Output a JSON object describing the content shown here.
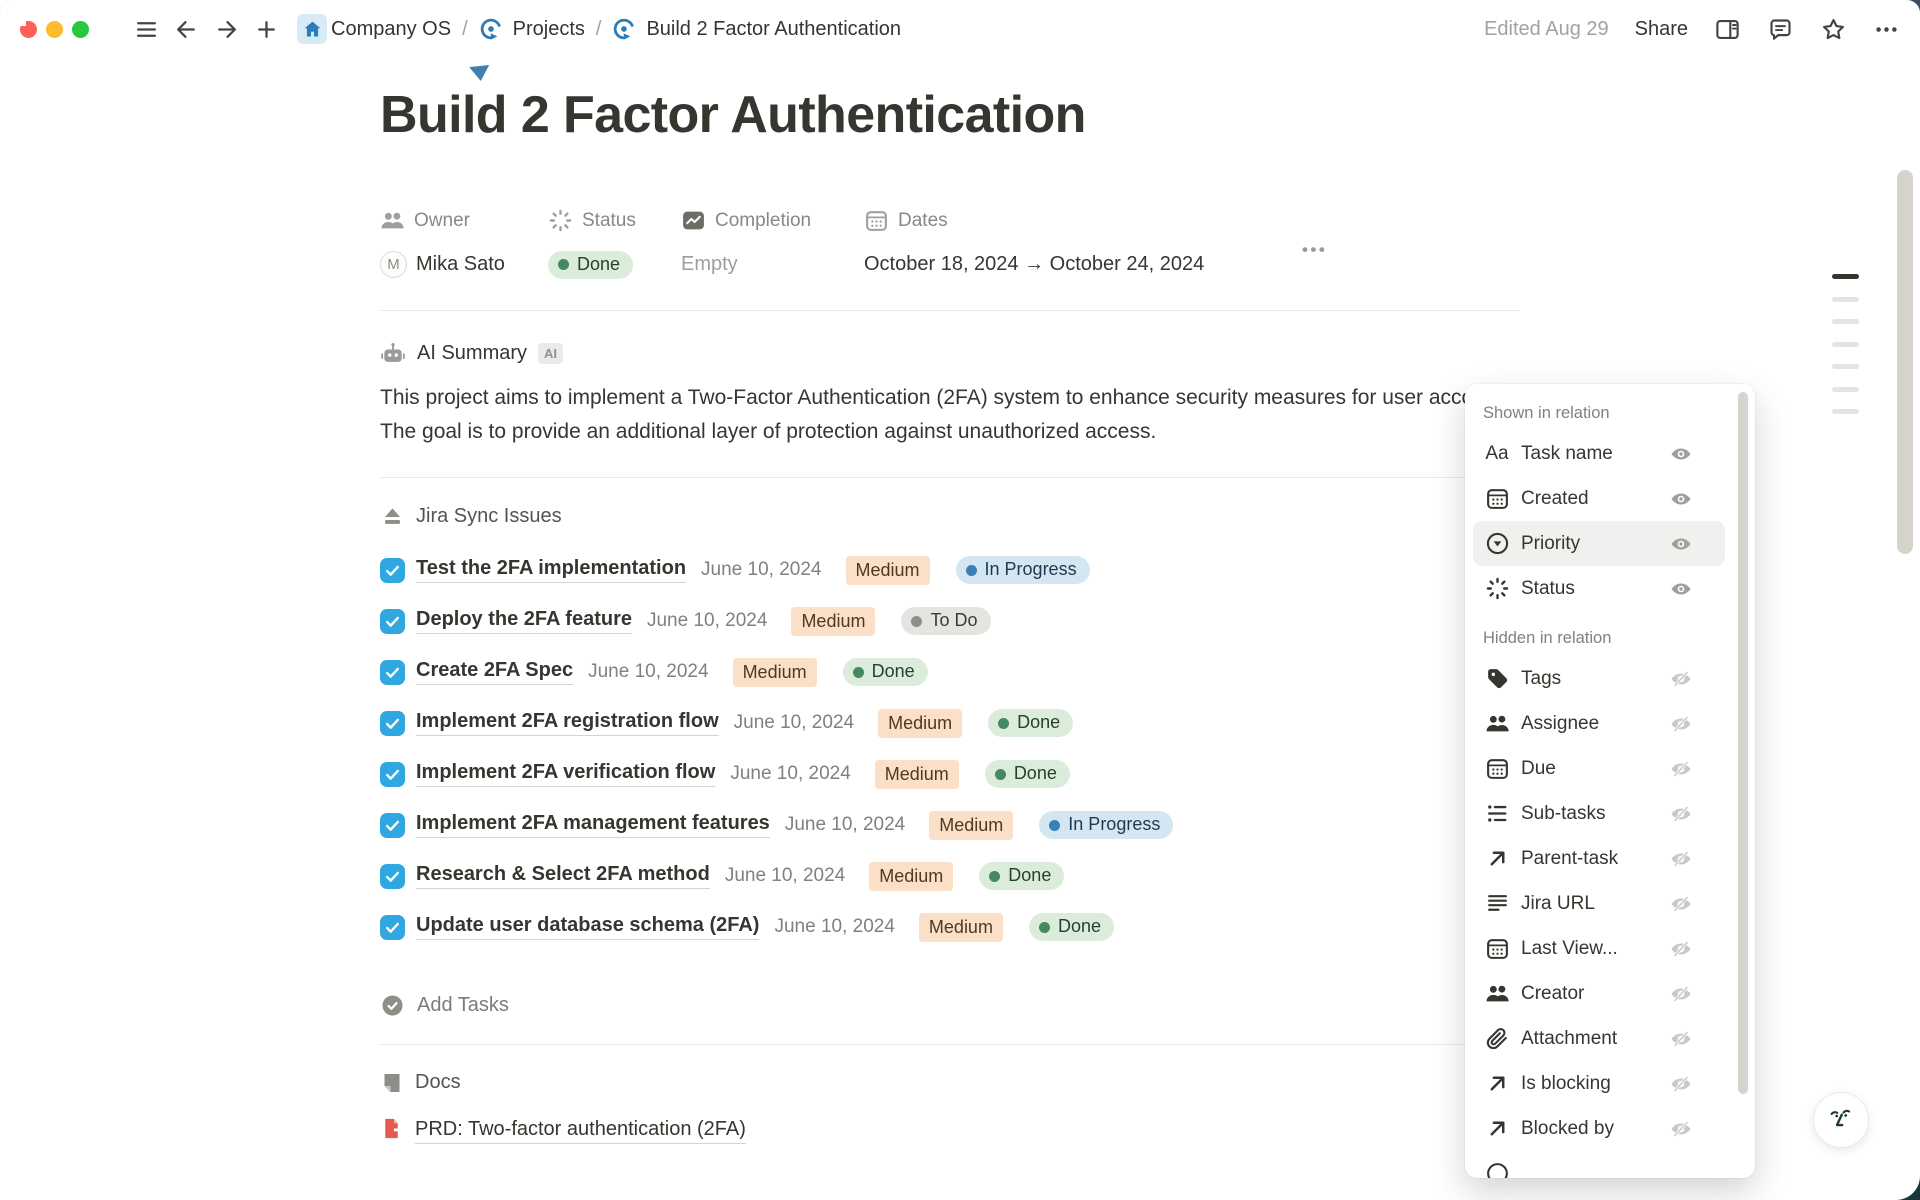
{
  "titlebar": {
    "breadcrumb": {
      "0": {
        "label": "Company OS"
      },
      "1": {
        "label": "Projects"
      },
      "2": {
        "label": "Build 2 Factor Authentication"
      }
    },
    "separator": "/",
    "edited": "Edited Aug 29",
    "share_label": "Share"
  },
  "page": {
    "title": "Build 2 Factor Authentication",
    "properties": {
      "owner": {
        "name": "Owner",
        "icon": "people-icon",
        "avatar_initial": "M",
        "value": "Mika Sato"
      },
      "status": {
        "name": "Status",
        "icon": "spinner-icon",
        "value": "Done"
      },
      "completion": {
        "name": "Completion",
        "icon": "chart-icon",
        "value": "Empty"
      },
      "dates": {
        "name": "Dates",
        "icon": "calendar-icon",
        "value": "October 18, 2024 → October 24, 2024"
      }
    }
  },
  "ai_summary": {
    "heading": "AI Summary",
    "badge": "AI",
    "text": "This project aims to implement a Two-Factor Authentication (2FA) system to enhance security measures for user accounts. The goal is to provide an additional layer of protection against unauthorized access."
  },
  "tasks_section": {
    "heading": "Jira Sync Issues",
    "add_label": "Add Tasks",
    "items": [
      {
        "title": "Test the 2FA implementation",
        "date": "June 10, 2024",
        "priority": "Medium",
        "status": "In Progress"
      },
      {
        "title": "Deploy the 2FA feature",
        "date": "June 10, 2024",
        "priority": "Medium",
        "status": "To Do"
      },
      {
        "title": "Create 2FA Spec",
        "date": "June 10, 2024",
        "priority": "Medium",
        "status": "Done"
      },
      {
        "title": "Implement 2FA registration flow",
        "date": "June 10, 2024",
        "priority": "Medium",
        "status": "Done"
      },
      {
        "title": "Implement 2FA verification flow",
        "date": "June 10, 2024",
        "priority": "Medium",
        "status": "Done"
      },
      {
        "title": "Implement 2FA management features",
        "date": "June 10, 2024",
        "priority": "Medium",
        "status": "In Progress"
      },
      {
        "title": "Research & Select 2FA method",
        "date": "June 10, 2024",
        "priority": "Medium",
        "status": "Done"
      },
      {
        "title": "Update user database schema (2FA)",
        "date": "June 10, 2024",
        "priority": "Medium",
        "status": "Done"
      }
    ]
  },
  "docs_section": {
    "heading": "Docs",
    "doc_title": "PRD: Two-factor authentication (2FA)"
  },
  "popover": {
    "shown_header": "Shown in relation",
    "hidden_header": "Hidden in relation",
    "shown": [
      {
        "label": "Task name",
        "icon": "text-icon"
      },
      {
        "label": "Created",
        "icon": "calendar-icon"
      },
      {
        "label": "Priority",
        "icon": "priority-icon",
        "highlighted": true
      },
      {
        "label": "Status",
        "icon": "spinner-icon"
      }
    ],
    "hidden": [
      {
        "label": "Tags",
        "icon": "tag-icon"
      },
      {
        "label": "Assignee",
        "icon": "people-icon"
      },
      {
        "label": "Due",
        "icon": "calendar-icon"
      },
      {
        "label": "Sub-tasks",
        "icon": "list-icon"
      },
      {
        "label": "Parent-task",
        "icon": "arrow-up-right-icon"
      },
      {
        "label": "Jira URL",
        "icon": "lines-icon"
      },
      {
        "label": "Last View...",
        "icon": "calendar-icon"
      },
      {
        "label": "Creator",
        "icon": "people-icon"
      },
      {
        "label": "Attachment",
        "icon": "paperclip-icon"
      },
      {
        "label": "Is blocking",
        "icon": "arrow-up-right-icon"
      },
      {
        "label": "Blocked by",
        "icon": "arrow-up-right-icon"
      },
      {
        "label": "",
        "icon": "circle-icon",
        "clipped": true
      }
    ]
  },
  "colors": {
    "checkbox_blue": "#2fa8e1",
    "accent_blue": "#2b7cb9",
    "priority_bg": "#fbdfc7",
    "status_done_bg": "#dcecdb",
    "status_done_dot": "#44895f",
    "status_progress_bg": "#d4e6f1",
    "status_progress_dot": "#3a7fb5",
    "status_todo_bg": "#e5e4e1",
    "status_todo_dot": "#8f8d89",
    "doc_red": "#e35a50"
  }
}
